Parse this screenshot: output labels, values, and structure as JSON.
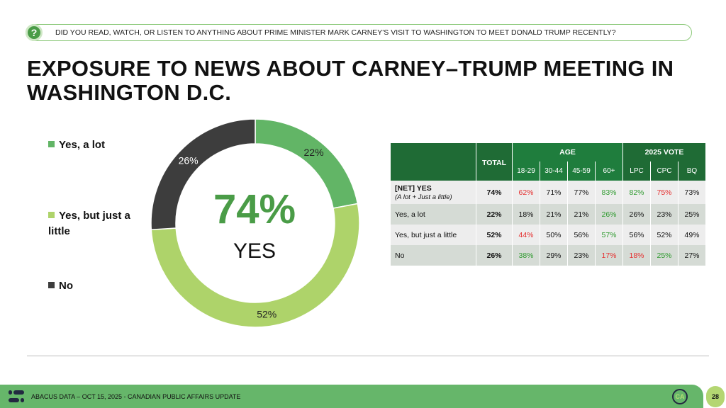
{
  "question": "DID YOU READ, WATCH, OR LISTEN TO ANYTHING ABOUT PRIME MINISTER MARK CARNEY'S VISIT TO WASHINGTON TO MEET DONALD TRUMP RECENTLY?",
  "title": "EXPOSURE TO NEWS ABOUT CARNEY–TRUMP MEETING IN WASHINGTON D.C.",
  "center": {
    "value": "74%",
    "label": "YES"
  },
  "chart_data": {
    "type": "pie",
    "donut": true,
    "categories": [
      "Yes, a lot",
      "Yes, but just a little",
      "No"
    ],
    "values": [
      22,
      52,
      26
    ],
    "labels": [
      "22%",
      "52%",
      "26%"
    ],
    "colors": [
      "#62b566",
      "#aed36a",
      "#3d3d3d"
    ],
    "legend": "left"
  },
  "table": {
    "total_header": "TOTAL",
    "groups": [
      {
        "label": "AGE",
        "cols": [
          "18-29",
          "30-44",
          "45-59",
          "60+"
        ]
      },
      {
        "label": "2025 VOTE",
        "cols": [
          "LPC",
          "CPC",
          "BQ"
        ]
      }
    ],
    "rows": [
      {
        "label": "[NET] YES",
        "sublabel": "(A lot + Just a little)",
        "total": "74%",
        "cells": [
          "62%",
          "71%",
          "77%",
          "83%",
          "82%",
          "75%",
          "73%"
        ],
        "colors": [
          "red",
          "",
          "",
          "green",
          "green",
          "red",
          ""
        ]
      },
      {
        "label": "Yes, a lot",
        "total": "22%",
        "cells": [
          "18%",
          "21%",
          "21%",
          "26%",
          "26%",
          "23%",
          "25%"
        ],
        "colors": [
          "",
          "",
          "",
          "green",
          "",
          "",
          ""
        ]
      },
      {
        "label": "Yes, but just a little",
        "total": "52%",
        "cells": [
          "44%",
          "50%",
          "56%",
          "57%",
          "56%",
          "52%",
          "49%"
        ],
        "colors": [
          "red",
          "",
          "",
          "green",
          "",
          "",
          ""
        ]
      },
      {
        "label": "No",
        "total": "26%",
        "cells": [
          "38%",
          "29%",
          "23%",
          "17%",
          "18%",
          "25%",
          "27%"
        ],
        "colors": [
          "green",
          "",
          "",
          "red",
          "red",
          "green",
          ""
        ]
      }
    ]
  },
  "footer": {
    "text": "ABACUS DATA – OCT 15, 2025 - CANADIAN PUBLIC AFFAIRS UPDATE",
    "logo": "CA",
    "page": "28"
  }
}
